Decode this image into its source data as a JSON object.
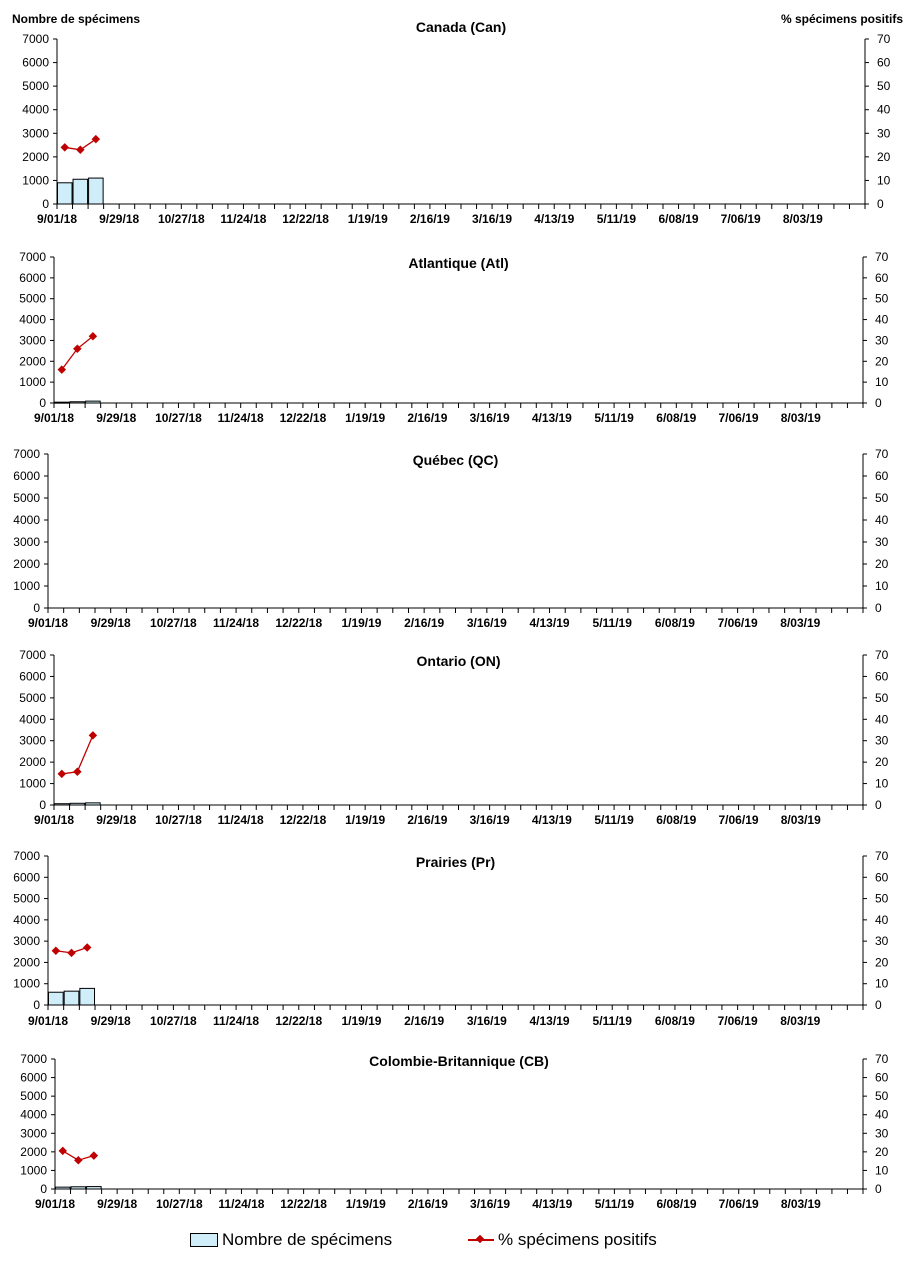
{
  "colors": {
    "bar_fill": "#cfeefa",
    "bar_stroke": "#000000",
    "line": "#c00000",
    "axis": "#000000"
  },
  "left_axis_title": "Nombre de spécimens",
  "right_axis_title": "% spécimens positifs",
  "legend": {
    "bars": "Nombre de spécimens",
    "line": "% spécimens positifs"
  },
  "chart_data": [
    {
      "type": "bar",
      "title": "Canada (Can)",
      "x": [
        "9/01/18",
        "9/29/18",
        "10/27/18",
        "11/24/18",
        "12/22/18",
        "1/19/19",
        "2/16/19",
        "3/16/19",
        "4/13/19",
        "5/11/19",
        "6/08/19",
        "7/06/19",
        "8/03/19"
      ],
      "bars": [
        900,
        1050,
        1100
      ],
      "line": [
        24,
        23,
        27.5
      ],
      "y_left": [
        0,
        7000
      ],
      "y_right": [
        0,
        70
      ],
      "y_left_ticks": [
        "0",
        "1000",
        "2000",
        "3000",
        "4000",
        "5000",
        "6000",
        "7000"
      ],
      "y_right_ticks": [
        "0",
        "10",
        "20",
        "30",
        "40",
        "50",
        "60",
        "70"
      ]
    },
    {
      "type": "bar",
      "title": "Atlantique (Atl)",
      "x": [
        "9/01/18",
        "9/29/18",
        "10/27/18",
        "11/24/18",
        "12/22/18",
        "1/19/19",
        "2/16/19",
        "3/16/19",
        "4/13/19",
        "5/11/19",
        "6/08/19",
        "7/06/19",
        "8/03/19"
      ],
      "bars": [
        40,
        60,
        90
      ],
      "line": [
        16,
        26,
        32
      ],
      "y_left": [
        0,
        7000
      ],
      "y_right": [
        0,
        70
      ],
      "y_left_ticks": [
        "0",
        "1000",
        "2000",
        "3000",
        "4000",
        "5000",
        "6000",
        "7000"
      ],
      "y_right_ticks": [
        "0",
        "10",
        "20",
        "30",
        "40",
        "50",
        "60",
        "70"
      ]
    },
    {
      "type": "bar",
      "title": "Québec (QC)",
      "x": [
        "9/01/18",
        "9/29/18",
        "10/27/18",
        "11/24/18",
        "12/22/18",
        "1/19/19",
        "2/16/19",
        "3/16/19",
        "4/13/19",
        "5/11/19",
        "6/08/19",
        "7/06/19",
        "8/03/19"
      ],
      "bars": [],
      "line": [],
      "y_left": [
        0,
        7000
      ],
      "y_right": [
        0,
        70
      ],
      "y_left_ticks": [
        "0",
        "1000",
        "2000",
        "3000",
        "4000",
        "5000",
        "6000",
        "7000"
      ],
      "y_right_ticks": [
        "0",
        "10",
        "20",
        "30",
        "40",
        "50",
        "60",
        "70"
      ]
    },
    {
      "type": "bar",
      "title": "Ontario (ON)",
      "x": [
        "9/01/18",
        "9/29/18",
        "10/27/18",
        "11/24/18",
        "12/22/18",
        "1/19/19",
        "2/16/19",
        "3/16/19",
        "4/13/19",
        "5/11/19",
        "6/08/19",
        "7/06/19",
        "8/03/19"
      ],
      "bars": [
        60,
        80,
        100
      ],
      "line": [
        14.5,
        15.5,
        32.5
      ],
      "y_left": [
        0,
        7000
      ],
      "y_right": [
        0,
        70
      ],
      "y_left_ticks": [
        "0",
        "1000",
        "2000",
        "3000",
        "4000",
        "5000",
        "6000",
        "7000"
      ],
      "y_right_ticks": [
        "0",
        "10",
        "20",
        "30",
        "40",
        "50",
        "60",
        "70"
      ]
    },
    {
      "type": "bar",
      "title": "Prairies (Pr)",
      "x": [
        "9/01/18",
        "9/29/18",
        "10/27/18",
        "11/24/18",
        "12/22/18",
        "1/19/19",
        "2/16/19",
        "3/16/19",
        "4/13/19",
        "5/11/19",
        "6/08/19",
        "7/06/19",
        "8/03/19"
      ],
      "bars": [
        600,
        650,
        780
      ],
      "line": [
        25.5,
        24.5,
        27
      ],
      "y_left": [
        0,
        7000
      ],
      "y_right": [
        0,
        70
      ],
      "y_left_ticks": [
        "0",
        "1000",
        "2000",
        "3000",
        "4000",
        "5000",
        "6000",
        "7000"
      ],
      "y_right_ticks": [
        "0",
        "10",
        "20",
        "30",
        "40",
        "50",
        "60",
        "70"
      ]
    },
    {
      "type": "bar",
      "title": "Colombie-Britannique (CB)",
      "x": [
        "9/01/18",
        "9/29/18",
        "10/27/18",
        "11/24/18",
        "12/22/18",
        "1/19/19",
        "2/16/19",
        "3/16/19",
        "4/13/19",
        "5/11/19",
        "6/08/19",
        "7/06/19",
        "8/03/19"
      ],
      "bars": [
        100,
        120,
        130
      ],
      "line": [
        20.5,
        15.5,
        18
      ],
      "y_left": [
        0,
        7000
      ],
      "y_right": [
        0,
        70
      ],
      "y_left_ticks": [
        "0",
        "1000",
        "2000",
        "3000",
        "4000",
        "5000",
        "6000",
        "7000"
      ],
      "y_right_ticks": [
        "0",
        "10",
        "20",
        "30",
        "40",
        "50",
        "60",
        "70"
      ]
    }
  ]
}
